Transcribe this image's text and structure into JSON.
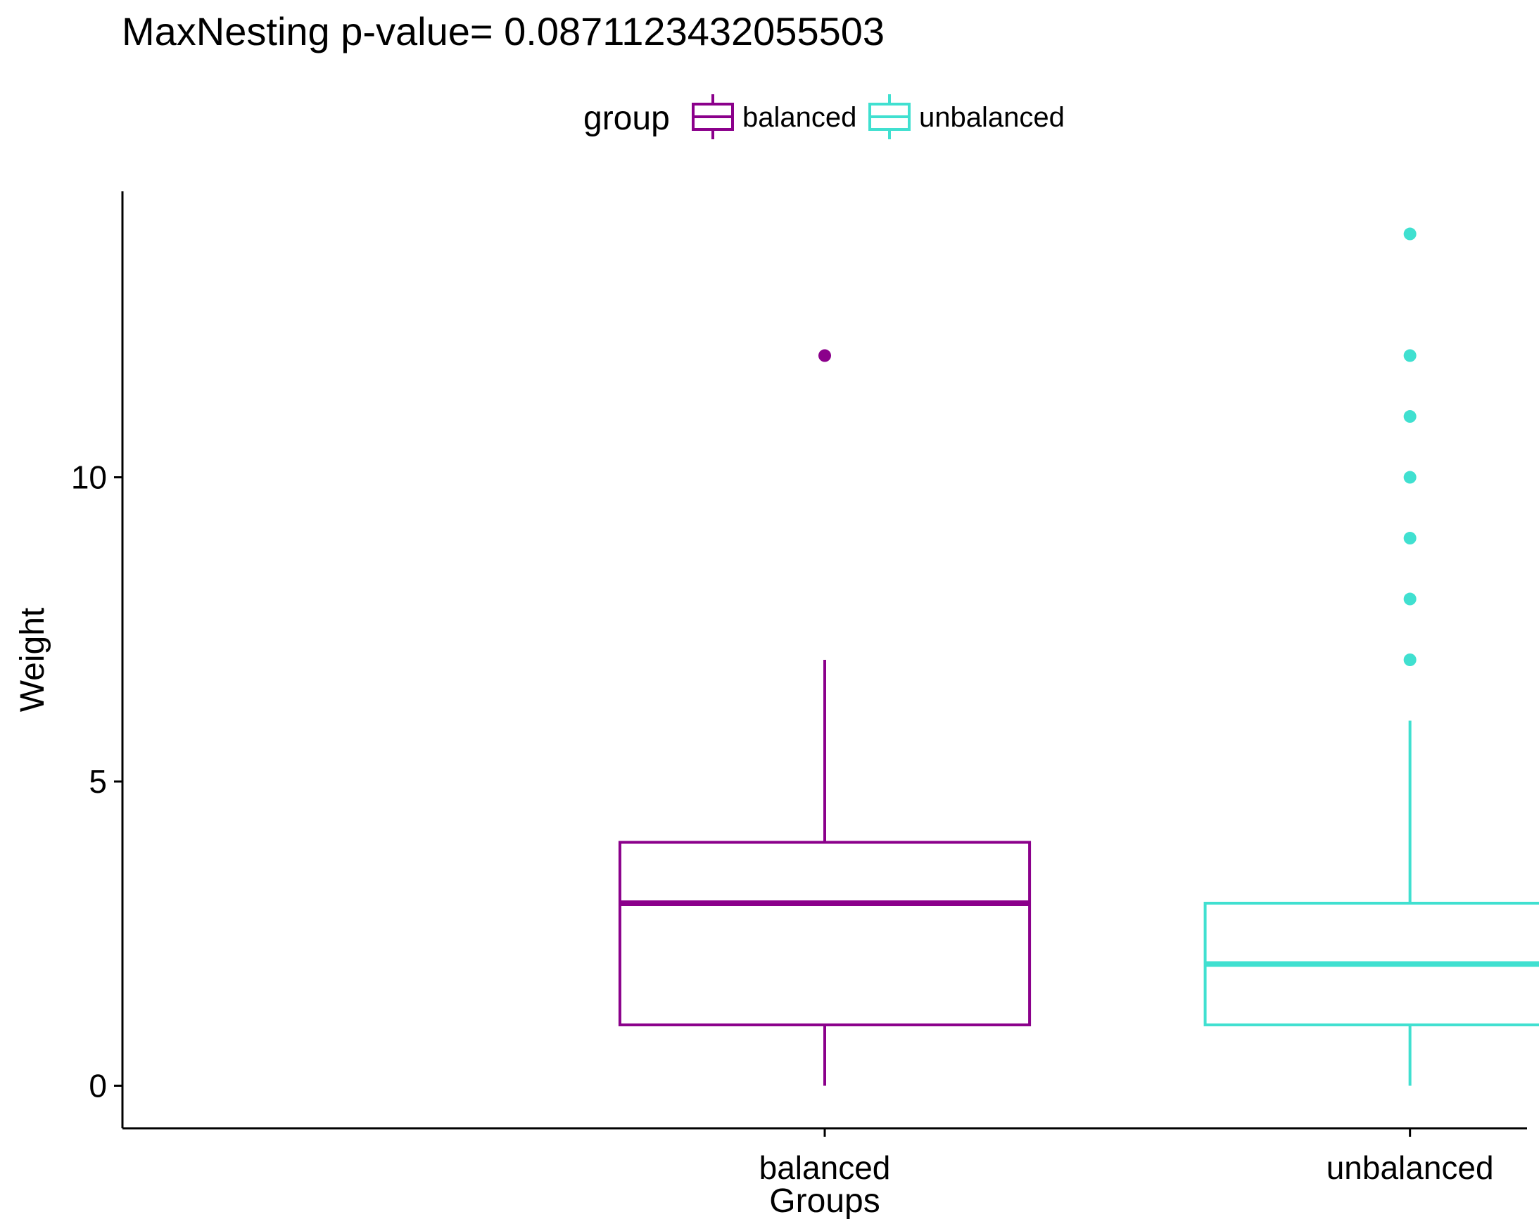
{
  "chart_data": {
    "type": "boxplot",
    "title": "MaxNesting  p-value= 0.0871123432055503",
    "xlabel": "Groups",
    "ylabel": "Weight",
    "ylim": [
      -0.7,
      14.7
    ],
    "yticks": [
      0,
      5,
      10
    ],
    "grid": false,
    "legend": {
      "title": "group",
      "position": "top",
      "entries": [
        "balanced",
        "unbalanced"
      ]
    },
    "categories": [
      "balanced",
      "unbalanced"
    ],
    "series": [
      {
        "name": "balanced",
        "color": "#8B008B",
        "whisker_low": 0,
        "q1": 1,
        "median": 3,
        "q3": 4,
        "whisker_high": 7,
        "outliers": [
          12
        ]
      },
      {
        "name": "unbalanced",
        "color": "#40E0D0",
        "whisker_low": 0,
        "q1": 1,
        "median": 2,
        "q3": 3,
        "whisker_high": 6,
        "outliers": [
          7,
          8,
          9,
          10,
          11,
          12,
          14
        ]
      }
    ]
  }
}
